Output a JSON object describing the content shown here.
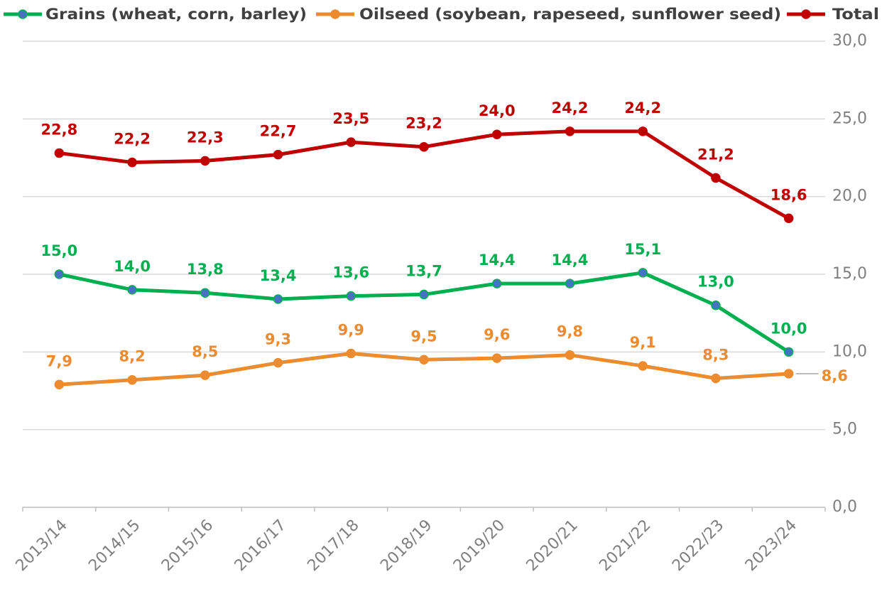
{
  "chart_data": {
    "type": "line",
    "categories": [
      "2013/14",
      "2014/15",
      "2015/16",
      "2016/17",
      "2017/18",
      "2018/19",
      "2019/20",
      "2020/21",
      "2021/22",
      "2022/23",
      "2023/24"
    ],
    "series": [
      {
        "name": "Grains (wheat, corn, barley)",
        "color": "#00b050",
        "marker_color": "#4472c4",
        "values": [
          15.0,
          14.0,
          13.8,
          13.4,
          13.6,
          13.7,
          14.4,
          14.4,
          15.1,
          13.0,
          10.0
        ],
        "value_labels": [
          "15,0",
          "14,0",
          "13,8",
          "13,4",
          "13,6",
          "13,7",
          "14,4",
          "14,4",
          "15,1",
          "13,0",
          "10,0"
        ]
      },
      {
        "name": "Oilseed (soybean, rapeseed, sunflower seed)",
        "color": "#ed8b2f",
        "values": [
          7.9,
          8.2,
          8.5,
          9.3,
          9.9,
          9.5,
          9.6,
          9.8,
          9.1,
          8.3,
          8.6
        ],
        "value_labels": [
          "7,9",
          "8,2",
          "8,5",
          "9,3",
          "9,9",
          "9,5",
          "9,6",
          "9,8",
          "9,1",
          "8,3",
          "8,6"
        ]
      },
      {
        "name": "Total",
        "color": "#c00000",
        "values": [
          22.8,
          22.2,
          22.3,
          22.7,
          23.5,
          23.2,
          24.0,
          24.2,
          24.2,
          21.2,
          18.6
        ],
        "value_labels": [
          "22,8",
          "22,2",
          "22,3",
          "22,7",
          "23,5",
          "23,2",
          "24,0",
          "24,2",
          "24,2",
          "21,2",
          "18,6"
        ]
      }
    ],
    "ylim": [
      0,
      30
    ],
    "yticks": [
      {
        "value": 0,
        "label": "0,0"
      },
      {
        "value": 5,
        "label": "5,0"
      },
      {
        "value": 10,
        "label": "10,0"
      },
      {
        "value": 15,
        "label": "15,0"
      },
      {
        "value": 20,
        "label": "20,0"
      },
      {
        "value": 25,
        "label": "25,0"
      },
      {
        "value": 30,
        "label": "30,0"
      }
    ],
    "y_axis_side": "right",
    "grid": true,
    "legend": "top"
  }
}
